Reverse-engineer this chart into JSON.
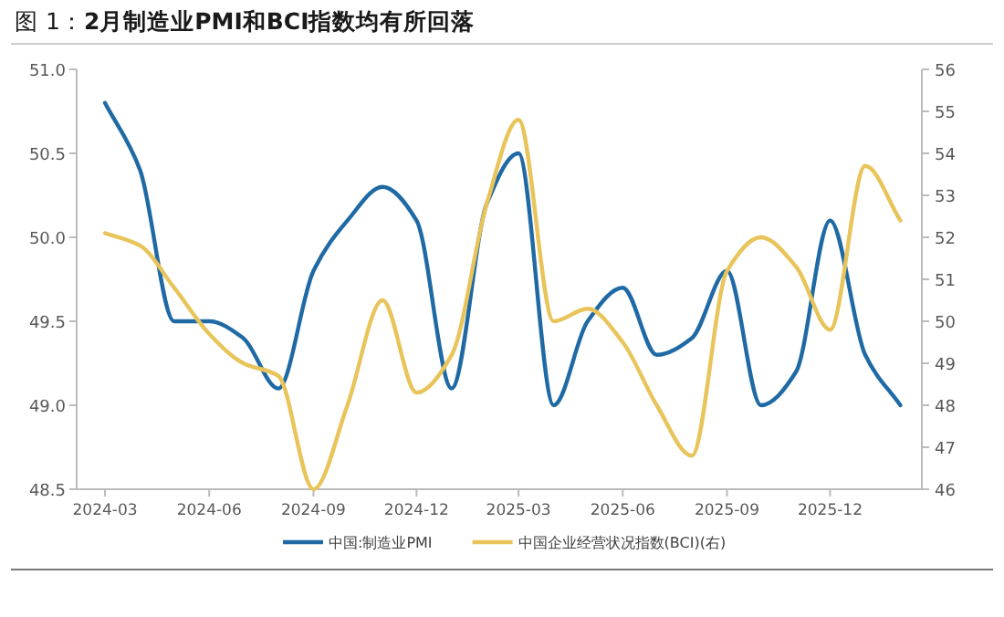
{
  "chart_data": {
    "type": "line",
    "title": "图 1：**2月制造业PMI和BCI指数均有所回落**",
    "x": [
      "2024-03",
      "2024-04",
      "2024-05",
      "2024-06",
      "2024-07",
      "2024-08",
      "2024-09",
      "2024-10",
      "2024-11",
      "2024-12",
      "2025-01",
      "2025-02",
      "2025-03",
      "2025-04",
      "2025-05",
      "2025-06",
      "2025-07",
      "2025-08",
      "2025-09",
      "2025-10",
      "2025-11",
      "2025-12",
      "2026-01",
      "2026-02"
    ],
    "series": [
      {
        "name": "中国:制造业PMI",
        "color": "#1f6aa5",
        "values": [
          50.8,
          50.4,
          49.5,
          49.5,
          49.4,
          49.1,
          49.8,
          50.1,
          50.3,
          50.1,
          49.1,
          50.2,
          50.5,
          49.0,
          49.5,
          49.7,
          49.3,
          49.4,
          49.8,
          49.0,
          49.2,
          50.1,
          49.3,
          49.0
        ]
      },
      {
        "name": "中国企业经营状况指数(BCI)(右)",
        "color": "#e8c45a",
        "axis": "y2",
        "values": [
          52.1,
          51.8,
          50.8,
          49.7,
          49.0,
          48.7,
          46.0,
          48.0,
          50.5,
          48.3,
          49.2,
          52.8,
          54.8,
          50.0,
          50.3,
          49.5,
          48.0,
          46.8,
          51.2,
          52.0,
          51.3,
          49.8,
          53.7,
          52.4
        ]
      }
    ],
    "xlim": [
      "2024-02-05",
      "2026-02-20"
    ],
    "xticks": [
      "2024-03",
      "2024-06",
      "2024-09",
      "2024-12",
      "2025-03",
      "2025-06",
      "2025-09",
      "2025-12"
    ],
    "ylim": [
      48.5,
      51.0
    ],
    "yticks": [
      {
        "value": 48.5,
        "label": "48.5"
      },
      {
        "value": 49.0,
        "label": "49.0"
      },
      {
        "value": 49.5,
        "label": "49.5"
      },
      {
        "value": 50.0,
        "label": "50.0"
      },
      {
        "value": 50.5,
        "label": "50.5"
      },
      {
        "value": 51.0,
        "label": "51.0"
      }
    ],
    "y2lim": [
      46,
      56
    ],
    "y2ticks": [
      46,
      47,
      48,
      49,
      50,
      51,
      52,
      53,
      54,
      55,
      56
    ],
    "legend": "bottom",
    "grid": false
  }
}
